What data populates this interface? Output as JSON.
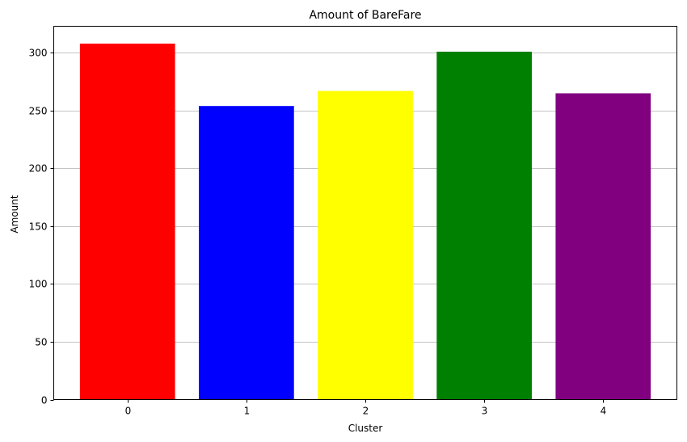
{
  "chart_data": {
    "type": "bar",
    "title": "Amount of BareFare",
    "xlabel": "Cluster",
    "ylabel": "Amount",
    "categories": [
      "0",
      "1",
      "2",
      "3",
      "4"
    ],
    "values": [
      308,
      254,
      267,
      301,
      265
    ],
    "colors": [
      "#ff0000",
      "#0000ff",
      "#ffff00",
      "#008000",
      "#800080"
    ],
    "ylim": [
      0,
      323
    ],
    "yticks": [
      0,
      50,
      100,
      150,
      200,
      250,
      300
    ],
    "grid": "y-major"
  }
}
